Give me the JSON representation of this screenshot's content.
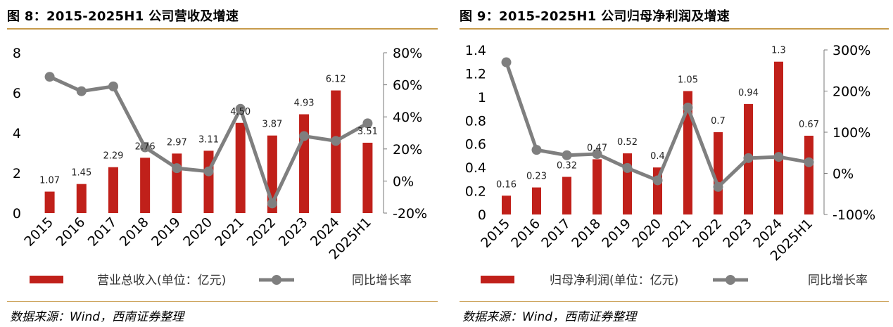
{
  "charts": [
    {
      "figure_title": "图 8：2015-2025H1 公司营收及增速",
      "source": "数据来源：Wind，西南证券整理",
      "chart_data": {
        "type": "bar",
        "categories": [
          "2015",
          "2016",
          "2017",
          "2018",
          "2019",
          "2020",
          "2021",
          "2022",
          "2023",
          "2024",
          "2025H1"
        ],
        "series": [
          {
            "name": "营业总收入(单位：亿元)",
            "type": "bar",
            "axis": "left",
            "values": [
              1.07,
              1.45,
              2.29,
              2.76,
              2.97,
              3.11,
              4.5,
              3.87,
              4.93,
              6.12,
              3.51
            ],
            "labels": [
              "1.07",
              "1.45",
              "2.29",
              "2.76",
              "2.97",
              "3.11",
              "4.50",
              "3.87",
              "4.93",
              "6.12",
              "3.51"
            ],
            "color": "#c0201a"
          },
          {
            "name": "同比增长率",
            "type": "line",
            "axis": "right",
            "values": [
              65,
              56,
              59,
              21,
              8,
              6,
              45,
              -14,
              28,
              25,
              36
            ],
            "color": "#7f7f7f"
          }
        ],
        "y_left": {
          "ylim": [
            0,
            8
          ],
          "ticks": [
            0,
            2,
            4,
            6,
            8
          ],
          "tick_labels": [
            "0",
            "2",
            "4",
            "6",
            "8"
          ]
        },
        "y_right": {
          "ylim": [
            -20,
            80
          ],
          "ticks": [
            -20,
            0,
            20,
            40,
            60,
            80
          ],
          "tick_labels": [
            "-20%",
            "0%",
            "20%",
            "40%",
            "60%",
            "80%"
          ]
        },
        "legend_placement": "bottom"
      }
    },
    {
      "figure_title": "图 9：2015-2025H1 公司归母净利润及增速",
      "source": "数据来源：Wind，西南证券整理",
      "chart_data": {
        "type": "bar",
        "categories": [
          "2015",
          "2016",
          "2017",
          "2018",
          "2019",
          "2020",
          "2021",
          "2022",
          "2023",
          "2024",
          "2025H1"
        ],
        "series": [
          {
            "name": "归母净利润(单位：亿元)",
            "type": "bar",
            "axis": "left",
            "values": [
              0.16,
              0.23,
              0.32,
              0.47,
              0.52,
              0.4,
              1.05,
              0.7,
              0.94,
              1.3,
              0.67
            ],
            "labels": [
              "0.16",
              "0.23",
              "0.32",
              "0.47",
              "0.52",
              "0.4",
              "1.05",
              "0.7",
              "0.94",
              "1.3",
              "0.67"
            ],
            "color": "#c0201a"
          },
          {
            "name": "同比增长率",
            "type": "line",
            "axis": "right",
            "values": [
              270,
              57,
              44,
              47,
              13,
              -17,
              160,
              -33,
              37,
              40,
              27
            ],
            "color": "#7f7f7f"
          }
        ],
        "y_left": {
          "ylim": [
            0,
            1.4
          ],
          "ticks": [
            0,
            0.2,
            0.4,
            0.6,
            0.8,
            1,
            1.2,
            1.4
          ],
          "tick_labels": [
            "0",
            "0.2",
            "0.4",
            "0.6",
            "0.8",
            "1",
            "1.2",
            "1.4"
          ]
        },
        "y_right": {
          "ylim": [
            -100,
            300
          ],
          "ticks": [
            -100,
            0,
            100,
            200,
            300
          ],
          "tick_labels": [
            "-100%",
            "0%",
            "100%",
            "200%",
            "300%"
          ]
        },
        "legend_placement": "bottom"
      }
    }
  ]
}
